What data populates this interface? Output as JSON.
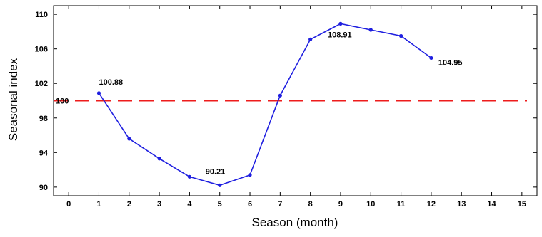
{
  "chart_data": {
    "type": "line",
    "title": "",
    "xlabel": "Season (month)",
    "ylabel": "Seasonal index",
    "xlim": [
      -0.5,
      15.5
    ],
    "ylim": [
      89,
      111
    ],
    "x_ticks": [
      0,
      1,
      2,
      3,
      4,
      5,
      6,
      7,
      8,
      9,
      10,
      11,
      12,
      13,
      14,
      15
    ],
    "y_ticks": [
      90,
      94,
      98,
      102,
      106,
      110
    ],
    "y_tick_labels": [
      "90",
      "94",
      "98",
      "102",
      "106",
      "110"
    ],
    "grid": false,
    "colors": {
      "series": "#1f1fe0",
      "reference": "#ee1c1c",
      "frame": "#000000"
    },
    "series": [
      {
        "x": [
          1,
          2,
          3,
          4,
          5,
          6,
          7,
          8,
          9,
          10,
          11,
          12
        ],
        "values": [
          100.88,
          95.6,
          93.3,
          91.2,
          90.21,
          91.4,
          100.6,
          107.1,
          108.91,
          108.2,
          107.5,
          104.95
        ]
      }
    ],
    "reference_line": {
      "value": 100,
      "label": "100",
      "style": "dashed"
    },
    "annotations": [
      {
        "x": 1,
        "y": 100.88,
        "text": "100.88"
      },
      {
        "x": 5,
        "y": 90.21,
        "text": "90.21"
      },
      {
        "x": 9,
        "y": 108.91,
        "text": "108.91"
      },
      {
        "x": 12,
        "y": 104.95,
        "text": "104.95"
      }
    ]
  }
}
